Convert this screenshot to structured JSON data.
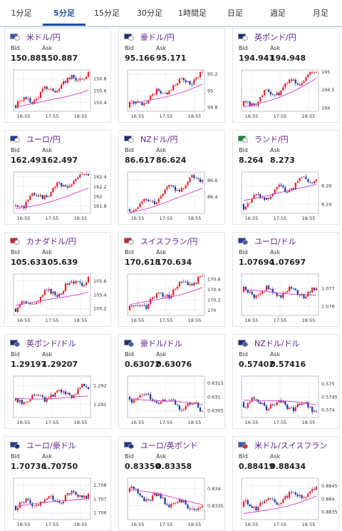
{
  "tabs": [
    {
      "label": "1分足",
      "active": false
    },
    {
      "label": "5分足",
      "active": true
    },
    {
      "label": "15分足",
      "active": false
    },
    {
      "label": "30分足",
      "active": false
    },
    {
      "label": "1時間足",
      "active": false
    },
    {
      "label": "日足",
      "active": false
    },
    {
      "label": "週足",
      "active": false
    },
    {
      "label": "月足",
      "active": false
    }
  ],
  "labels": {
    "bid": "Bid",
    "ask": "Ask"
  },
  "x_ticks": [
    "16:55",
    "17:55",
    "18:55"
  ],
  "colors": {
    "up": "#e8212a",
    "down": "#1b3aa0",
    "ma": "#d23ad0"
  },
  "pairs": [
    {
      "name": "米ドル/円",
      "bid": "150.885",
      "ask": "150.887",
      "flags": [
        "#3c5aa8",
        "#ffffff"
      ],
      "yticks": [
        "150.8",
        "150.6",
        "150.4"
      ],
      "ylim": [
        150.25,
        150.95
      ],
      "trend": [
        150.35,
        150.9
      ],
      "ma": [
        150.32,
        150.62
      ]
    },
    {
      "name": "豪ドル/円",
      "bid": "95.166",
      "ask": "95.171",
      "flags": [
        "#1b2f7a",
        "#ffffff"
      ],
      "yticks": [
        "95.2",
        "95",
        "94.8"
      ],
      "ylim": [
        94.75,
        95.25
      ],
      "trend": [
        94.8,
        95.2
      ],
      "ma": [
        94.83,
        95.08
      ]
    },
    {
      "name": "英ポンド/円",
      "bid": "194.941",
      "ask": "194.948",
      "flags": [
        "#1b2f7a",
        "#ffffff"
      ],
      "yticks": [
        "195",
        "194.5",
        "194"
      ],
      "ylim": [
        193.9,
        195.05
      ],
      "trend": [
        194.05,
        195.0
      ],
      "ma": [
        194.0,
        194.8
      ]
    },
    {
      "name": "ユーロ/円",
      "bid": "162.493",
      "ask": "162.497",
      "flags": [
        "#1a3e9c",
        "#ffffff"
      ],
      "yticks": [
        "162.4",
        "162.2",
        "162",
        "161.8"
      ],
      "ylim": [
        161.65,
        162.5
      ],
      "trend": [
        161.8,
        162.45
      ],
      "ma": [
        161.75,
        162.15
      ]
    },
    {
      "name": "NZドル/円",
      "bid": "86.617",
      "ask": "86.624",
      "flags": [
        "#1b2f7a",
        "#ffffff"
      ],
      "yticks": [
        "86.6",
        "86.4"
      ],
      "ylim": [
        86.2,
        86.7
      ],
      "trend": [
        86.25,
        86.65
      ],
      "ma": [
        86.22,
        86.5
      ]
    },
    {
      "name": "ランド/円",
      "bid": "8.264",
      "ask": "8.273",
      "flags": [
        "#1e8a3a",
        "#ffffff"
      ],
      "yticks": [
        "8.26",
        "8.24"
      ],
      "ylim": [
        8.23,
        8.275
      ],
      "trend": [
        8.24,
        8.27
      ],
      "ma": [
        8.245,
        8.262
      ]
    },
    {
      "name": "カナダドル/円",
      "bid": "105.633",
      "ask": "105.639",
      "flags": [
        "#d0262b",
        "#ffffff"
      ],
      "yticks": [
        "105.6",
        "105.4",
        "105.2"
      ],
      "ylim": [
        105.1,
        105.7
      ],
      "trend": [
        105.2,
        105.65
      ],
      "ma": [
        105.25,
        105.45
      ]
    },
    {
      "name": "スイスフラン/円",
      "bid": "170.618",
      "ask": "170.634",
      "flags": [
        "#d0262b",
        "#ffffff"
      ],
      "yticks": [
        "170.6",
        "170.4",
        "170.2",
        "170"
      ],
      "ylim": [
        169.9,
        170.7
      ],
      "trend": [
        170.0,
        170.65
      ],
      "ma": [
        170.1,
        170.45
      ]
    },
    {
      "name": "ユーロ/ドル",
      "bid": "1.07694",
      "ask": "1.07697",
      "flags": [
        "#1a3e9c",
        "#3c5aa8"
      ],
      "yticks": [
        "1.077",
        "1.076"
      ],
      "ylim": [
        1.0755,
        1.0778
      ],
      "trend": [
        1.0768,
        1.0768
      ],
      "ma": [
        1.0769,
        1.0766
      ]
    },
    {
      "name": "英ポンド/ドル",
      "bid": "1.29197",
      "ask": "1.29207",
      "flags": [
        "#1b2f7a",
        "#3c5aa8"
      ],
      "yticks": [
        "1.292",
        "1.291"
      ],
      "ylim": [
        1.2903,
        1.2925
      ],
      "trend": [
        1.2912,
        1.2918
      ],
      "ma": [
        1.2913,
        1.2914
      ]
    },
    {
      "name": "豪ドル/ドル",
      "bid": "0.63072",
      "ask": "0.63076",
      "flags": [
        "#1b2f7a",
        "#3c5aa8"
      ],
      "yticks": [
        "0.6315",
        "0.631",
        "0.6305"
      ],
      "ylim": [
        0.63025,
        0.63175
      ],
      "trend": [
        0.631,
        0.6306
      ],
      "ma": [
        0.63095,
        0.6307
      ]
    },
    {
      "name": "NZドル/ドル",
      "bid": "0.57402",
      "ask": "0.57416",
      "flags": [
        "#1b2f7a",
        "#3c5aa8"
      ],
      "yticks": [
        "0.575",
        "0.5745",
        "0.574"
      ],
      "ylim": [
        0.5737,
        0.5753
      ],
      "trend": [
        0.5743,
        0.5741
      ],
      "ma": [
        0.5744,
        0.5742
      ]
    },
    {
      "name": "ユーロ/豪ドル",
      "bid": "1.70736",
      "ask": "1.70750",
      "flags": [
        "#1a3e9c",
        "#1b2f7a"
      ],
      "yticks": [
        "1.708",
        "1.707",
        "1.706"
      ],
      "ylim": [
        1.7055,
        1.7085
      ],
      "trend": [
        1.7065,
        1.7074
      ],
      "ma": [
        1.7065,
        1.7071
      ]
    },
    {
      "name": "ユーロ/英ポンド",
      "bid": "0.83350",
      "ask": "0.83358",
      "flags": [
        "#1a3e9c",
        "#1b2f7a"
      ],
      "yticks": [
        "0.834",
        "0.8335"
      ],
      "ylim": [
        0.8331,
        0.8343
      ],
      "trend": [
        0.8339,
        0.8334
      ],
      "ma": [
        0.83395,
        0.83355
      ]
    },
    {
      "name": "米ドル/スイスフラン",
      "bid": "0.88419",
      "ask": "0.88434",
      "flags": [
        "#3c5aa8",
        "#d0262b"
      ],
      "yticks": [
        "0.8845",
        "0.884",
        "0.8835"
      ],
      "ylim": [
        0.8832,
        0.8848
      ],
      "trend": [
        0.8837,
        0.8843
      ],
      "ma": [
        0.8834,
        0.8841
      ]
    }
  ]
}
